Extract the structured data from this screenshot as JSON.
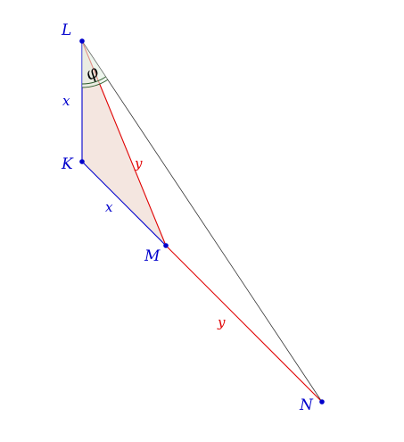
{
  "points": {
    "L": "L",
    "K": "K",
    "M": "M",
    "N": "N"
  },
  "segments": {
    "LK": "x",
    "KM": "x",
    "LM": "y",
    "MN": "y"
  },
  "angle": {
    "symbol": "φ"
  },
  "colors": {
    "blue": "#0000cc",
    "red": "#e00000",
    "black": "#333333",
    "fill": "#f4e6e0",
    "angle": "#2a5a2a"
  }
}
